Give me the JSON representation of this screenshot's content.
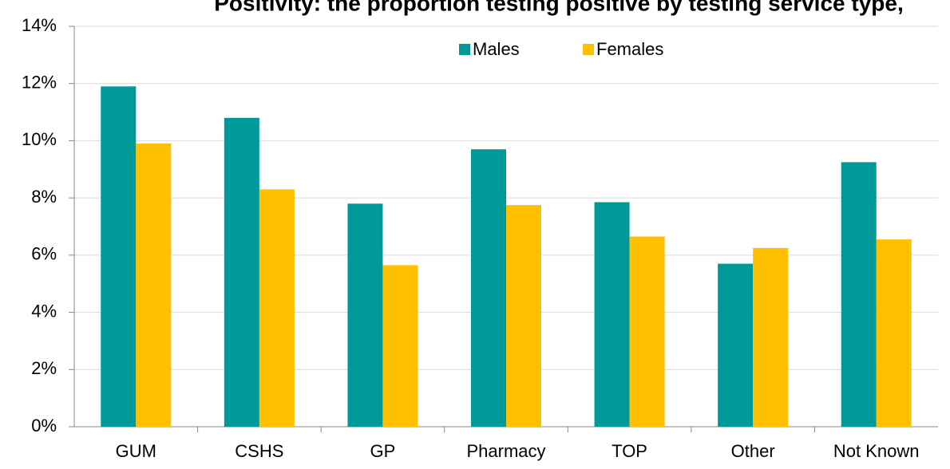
{
  "chart_data": {
    "type": "bar",
    "title": "Positivity: the proportion testing positive by testing service type,",
    "categories": [
      "GUM",
      "CSHS",
      "GP",
      "Pharmacy",
      "TOP",
      "Other",
      "Not Known"
    ],
    "series": [
      {
        "name": "Males",
        "color": "#009999",
        "values": [
          11.9,
          10.8,
          7.8,
          9.7,
          7.85,
          5.7,
          9.25
        ]
      },
      {
        "name": "Females",
        "color": "#ffc000",
        "values": [
          9.9,
          8.3,
          5.65,
          7.75,
          6.65,
          6.25,
          6.55
        ]
      }
    ],
    "ylim": [
      0,
      14
    ],
    "yticks": [
      {
        "value": 0,
        "label": "0%"
      },
      {
        "value": 2,
        "label": "2%"
      },
      {
        "value": 4,
        "label": "4%"
      },
      {
        "value": 6,
        "label": "6%"
      },
      {
        "value": 8,
        "label": "8%"
      },
      {
        "value": 10,
        "label": "10%"
      },
      {
        "value": 12,
        "label": "12%"
      },
      {
        "value": 14,
        "label": "14%"
      }
    ],
    "grid": true,
    "legend": "top"
  }
}
